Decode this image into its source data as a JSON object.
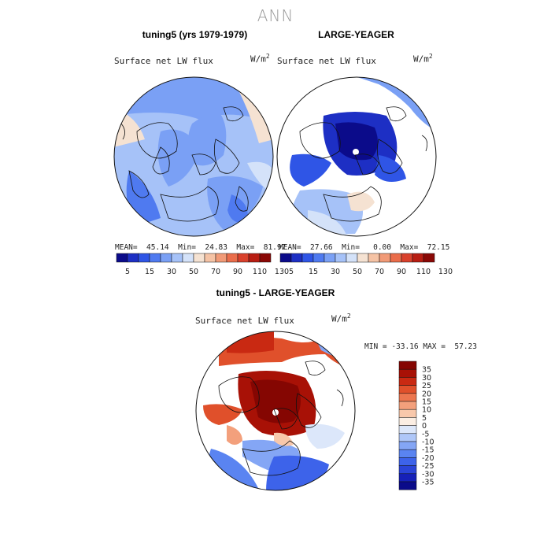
{
  "figure": {
    "title": "ANN"
  },
  "panels": [
    {
      "title": "tuning5 (yrs 1979-1979)",
      "plot_label": "Surface net LW flux",
      "units_base": "W/m",
      "units_exp": "2",
      "stats": "MEAN=  45.14  Min=  24.83  Max=  81.97"
    },
    {
      "title": "LARGE-YEAGER",
      "plot_label": "Surface net LW flux",
      "units_base": "W/m",
      "units_exp": "2",
      "stats": "MEAN=  27.66  Min=   0.00  Max=  72.15"
    },
    {
      "title": "tuning5 - LARGE-YEAGER",
      "plot_label": "Surface net LW flux",
      "units_base": "W/m",
      "units_exp": "2",
      "stats": "MIN = -33.16 MAX =  57.23"
    }
  ],
  "colors": {
    "abs_scale": [
      "#0b0b8a",
      "#1d2fc4",
      "#2f55e6",
      "#4f7af0",
      "#7aa0f5",
      "#a6c2f8",
      "#d4e2f9",
      "#f5e2d2",
      "#f5c3a5",
      "#f19a77",
      "#ea6d4b",
      "#d9412c",
      "#b81d12",
      "#8a0806"
    ],
    "diff_scale": [
      "#0b0b8a",
      "#1620b8",
      "#2a44d8",
      "#3d63ea",
      "#5a84f1",
      "#84a6f5",
      "#afc7f8",
      "#dce7fa",
      "#fbeee3",
      "#f8c8ab",
      "#f3a07c",
      "#ec764f",
      "#e0502b",
      "#c92912",
      "#a81106",
      "#850602"
    ],
    "map_land": "#ffffff",
    "coast": "#111111"
  },
  "chart_data": [
    {
      "type": "heatmap",
      "name": "tuning5 (yrs 1979-1979)",
      "projection": "north polar stereographic",
      "colorbar": {
        "orientation": "horizontal",
        "tick_labels": [
          "5",
          "15",
          "30",
          "50",
          "70",
          "90",
          "110",
          "130"
        ]
      },
      "mean": 45.14,
      "min": 24.83,
      "max": 81.97
    },
    {
      "type": "heatmap",
      "name": "LARGE-YEAGER",
      "projection": "north polar stereographic",
      "colorbar": {
        "orientation": "horizontal",
        "tick_labels": [
          "5",
          "15",
          "30",
          "50",
          "70",
          "90",
          "110",
          "130"
        ]
      },
      "mean": 27.66,
      "min": 0.0,
      "max": 72.15
    },
    {
      "type": "heatmap",
      "name": "tuning5 - LARGE-YEAGER",
      "projection": "north polar stereographic",
      "colorbar": {
        "orientation": "vertical",
        "tick_labels": [
          "35",
          "30",
          "25",
          "20",
          "15",
          "10",
          "5",
          "0",
          "-5",
          "-10",
          "-15",
          "-20",
          "-25",
          "-30",
          "-35"
        ]
      },
      "min": -33.16,
      "max": 57.23
    }
  ]
}
